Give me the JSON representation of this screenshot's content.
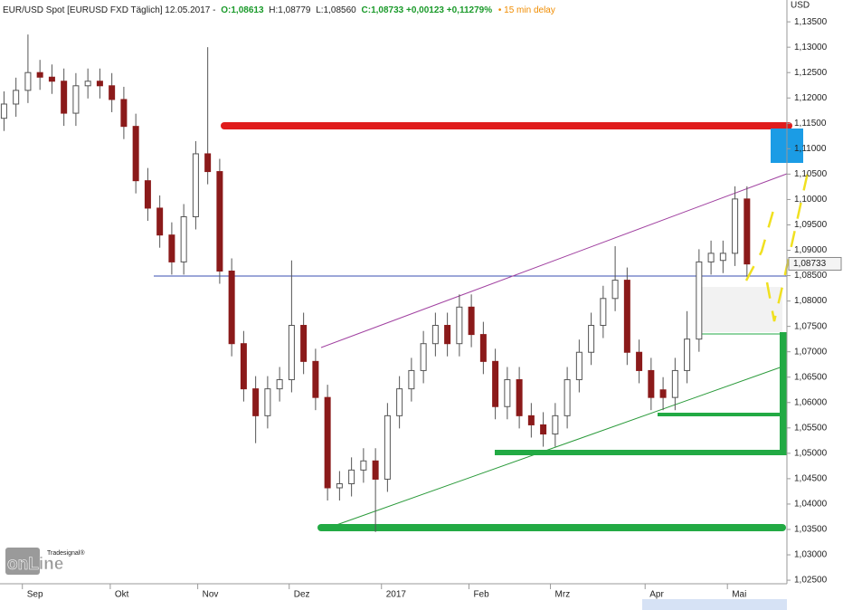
{
  "chart_data": {
    "type": "candlestick",
    "header": {
      "instrument": "EUR/USD Spot [EURUSD FXD Täglich] 12.05.2017 -",
      "open": "O:1,08613",
      "high": "H:1,08779",
      "low": "L:1,08560",
      "close": "C:1,08733 +0,00123 +0,11279%",
      "delay": "• 15 min delay"
    },
    "y_axis_label": "USD",
    "last_price": {
      "value": 1.08733,
      "label": "1,08733"
    },
    "logo": {
      "top": "Tradesignal®",
      "bottom": "onLine"
    },
    "up_color": "#ffffff",
    "down_color": "#8b1a1a",
    "wick_color": "#555555",
    "xlim": [
      0,
      197
    ],
    "xticks": [
      {
        "value": 5.6,
        "label": "Sep"
      },
      {
        "value": 27.6,
        "label": "Okt"
      },
      {
        "value": 49.5,
        "label": "Nov"
      },
      {
        "value": 72.4,
        "label": "Dez"
      },
      {
        "value": 95.5,
        "label": "2017"
      },
      {
        "value": 117.4,
        "label": "Feb"
      },
      {
        "value": 137.8,
        "label": "Mrz"
      },
      {
        "value": 161.5,
        "label": "Apr"
      },
      {
        "value": 182.1,
        "label": "Mai"
      }
    ],
    "ylim": [
      1.0243,
      1.1393
    ],
    "yticks": [
      {
        "value": 1.025,
        "label": "1,02500"
      },
      {
        "value": 1.03,
        "label": "1,03000"
      },
      {
        "value": 1.035,
        "label": "1,03500"
      },
      {
        "value": 1.04,
        "label": "1,04000"
      },
      {
        "value": 1.045,
        "label": "1,04500"
      },
      {
        "value": 1.05,
        "label": "1,05000"
      },
      {
        "value": 1.055,
        "label": "1,05500"
      },
      {
        "value": 1.06,
        "label": "1,06000"
      },
      {
        "value": 1.065,
        "label": "1,06500"
      },
      {
        "value": 1.07,
        "label": "1,07000"
      },
      {
        "value": 1.075,
        "label": "1,07500"
      },
      {
        "value": 1.08,
        "label": "1,08000"
      },
      {
        "value": 1.085,
        "label": "1,08500"
      },
      {
        "value": 1.09,
        "label": "1,09000"
      },
      {
        "value": 1.095,
        "label": "1,09500"
      },
      {
        "value": 1.1,
        "label": "1,10000"
      },
      {
        "value": 1.105,
        "label": "1,10500"
      },
      {
        "value": 1.11,
        "label": "1,11000"
      },
      {
        "value": 1.115,
        "label": "1,11500"
      },
      {
        "value": 1.12,
        "label": "1,12000"
      },
      {
        "value": 1.125,
        "label": "1,12500"
      },
      {
        "value": 1.13,
        "label": "1,13000"
      },
      {
        "value": 1.135,
        "label": "1,13500"
      }
    ],
    "x": [
      1,
      4,
      7,
      10,
      13,
      16,
      19,
      22,
      25,
      28,
      31,
      34,
      37,
      40,
      43,
      46,
      49,
      52,
      55,
      58,
      61,
      64,
      67,
      70,
      73,
      76,
      79,
      82,
      85,
      88,
      91,
      94,
      97,
      100,
      103,
      106,
      109,
      112,
      115,
      118,
      121,
      124,
      127,
      130,
      133,
      136,
      139,
      142,
      145,
      148,
      151,
      154,
      157,
      160,
      163,
      166,
      169,
      172,
      175,
      178,
      181,
      184,
      187
    ],
    "open": [
      1.116,
      1.1188,
      1.1215,
      1.125,
      1.1241,
      1.1233,
      1.117,
      1.1224,
      1.1233,
      1.1224,
      1.1197,
      1.1144,
      1.1037,
      1.0983,
      1.093,
      1.0877,
      1.0966,
      1.109,
      1.1055,
      1.0859,
      1.0716,
      1.0627,
      1.0574,
      1.0627,
      1.0645,
      1.0752,
      1.0681,
      1.061,
      1.0432,
      1.044,
      1.0467,
      1.0485,
      1.0449,
      1.0574,
      1.0627,
      1.0663,
      1.0716,
      1.0752,
      1.0716,
      1.0788,
      1.0734,
      1.0681,
      1.0592,
      1.0645,
      1.0574,
      1.0556,
      1.0538,
      1.0574,
      1.0645,
      1.0699,
      1.0752,
      1.0805,
      1.0841,
      1.0699,
      1.0663,
      1.0625,
      1.061,
      1.0663,
      1.0725,
      1.0877,
      1.088,
      1.0894,
      1.1001
    ],
    "high": [
      1.1213,
      1.124,
      1.1325,
      1.1275,
      1.1266,
      1.1258,
      1.1249,
      1.1258,
      1.1258,
      1.1249,
      1.1222,
      1.1169,
      1.1062,
      1.1008,
      1.0955,
      1.0991,
      1.1115,
      1.13,
      1.108,
      1.0884,
      1.0741,
      1.0652,
      1.0652,
      1.067,
      1.088,
      1.0777,
      1.0706,
      1.0635,
      1.0465,
      1.0492,
      1.051,
      1.051,
      1.0599,
      1.0652,
      1.0688,
      1.0741,
      1.0777,
      1.0777,
      1.0813,
      1.0813,
      1.0759,
      1.0706,
      1.067,
      1.067,
      1.0599,
      1.0581,
      1.0599,
      1.067,
      1.0724,
      1.0777,
      1.083,
      1.0908,
      1.0866,
      1.0724,
      1.0688,
      1.065,
      1.0688,
      1.078,
      1.0902,
      1.0919,
      1.0919,
      1.1026,
      1.1026
    ],
    "low": [
      1.1135,
      1.1163,
      1.119,
      1.1216,
      1.1208,
      1.1145,
      1.1145,
      1.1199,
      1.1199,
      1.1172,
      1.1119,
      1.1012,
      1.0958,
      1.0905,
      1.0852,
      1.0852,
      1.0941,
      1.103,
      1.0834,
      1.0691,
      1.0602,
      1.052,
      1.0549,
      1.0602,
      1.062,
      1.0656,
      1.0585,
      1.0407,
      1.0407,
      1.0415,
      1.0442,
      1.0345,
      1.0424,
      1.0549,
      1.0602,
      1.0638,
      1.0691,
      1.0691,
      1.0691,
      1.0709,
      1.0656,
      1.0567,
      1.0567,
      1.0549,
      1.0531,
      1.0513,
      1.0513,
      1.0549,
      1.062,
      1.0674,
      1.0727,
      1.078,
      1.0674,
      1.0638,
      1.0585,
      1.0585,
      1.0585,
      1.0638,
      1.07,
      1.0852,
      1.0855,
      1.0869,
      1.0848
    ],
    "close": [
      1.1188,
      1.1215,
      1.125,
      1.1241,
      1.1233,
      1.117,
      1.1224,
      1.1233,
      1.1224,
      1.1197,
      1.1144,
      1.1037,
      1.0983,
      1.093,
      1.0877,
      1.0966,
      1.109,
      1.1055,
      1.0859,
      1.0716,
      1.0627,
      1.0574,
      1.0627,
      1.0645,
      1.0752,
      1.0681,
      1.061,
      1.0432,
      1.044,
      1.0467,
      1.0485,
      1.0449,
      1.0574,
      1.0627,
      1.0663,
      1.0716,
      1.0752,
      1.0716,
      1.0788,
      1.0734,
      1.0681,
      1.0592,
      1.0645,
      1.0574,
      1.0556,
      1.0538,
      1.0574,
      1.0645,
      1.0699,
      1.0752,
      1.0805,
      1.0841,
      1.0699,
      1.0663,
      1.061,
      1.061,
      1.0663,
      1.0725,
      1.0877,
      1.0894,
      1.0894,
      1.1001,
      1.0873
    ]
  }
}
